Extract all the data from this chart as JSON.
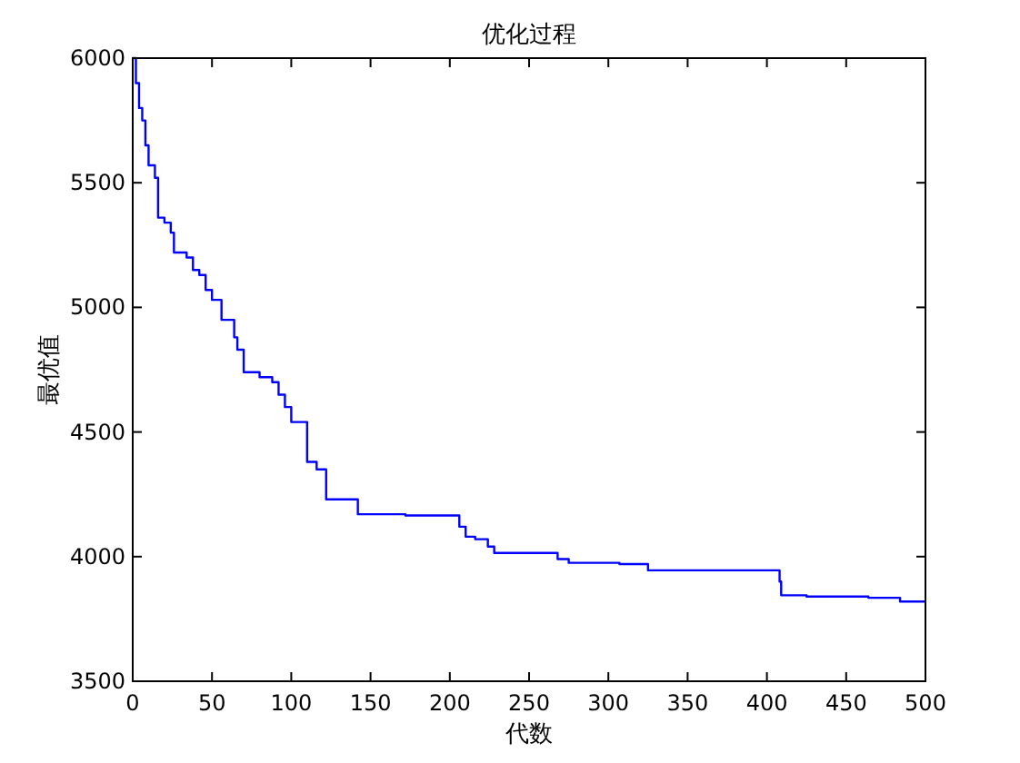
{
  "chart_data": {
    "type": "step",
    "title": "优化过程",
    "xlabel": "代数",
    "ylabel": "最优值",
    "xlim": [
      0,
      500
    ],
    "xticks": [
      0,
      50,
      100,
      150,
      200,
      250,
      300,
      350,
      400,
      450,
      500
    ],
    "ylim": [
      3500,
      6000
    ],
    "yticks": [
      3500,
      4000,
      4500,
      5000,
      5500,
      6000
    ],
    "grid": false,
    "series": [
      {
        "color": "#0000ff",
        "x": [
          0,
          2,
          4,
          6,
          8,
          10,
          14,
          16,
          20,
          24,
          26,
          34,
          38,
          42,
          46,
          50,
          56,
          64,
          66,
          70,
          80,
          88,
          92,
          96,
          100,
          110,
          116,
          122,
          142,
          172,
          206,
          210,
          216,
          224,
          228,
          268,
          275,
          307,
          325,
          408,
          409,
          425,
          464,
          484,
          500
        ],
        "values": [
          6000,
          5900,
          5800,
          5750,
          5650,
          5570,
          5520,
          5360,
          5340,
          5300,
          5220,
          5200,
          5150,
          5130,
          5070,
          5030,
          4950,
          4880,
          4830,
          4740,
          4720,
          4700,
          4650,
          4600,
          4540,
          4380,
          4350,
          4230,
          4170,
          4165,
          4120,
          4080,
          4070,
          4040,
          4015,
          3990,
          3975,
          3970,
          3945,
          3900,
          3845,
          3840,
          3835,
          3820,
          3820
        ]
      }
    ]
  }
}
